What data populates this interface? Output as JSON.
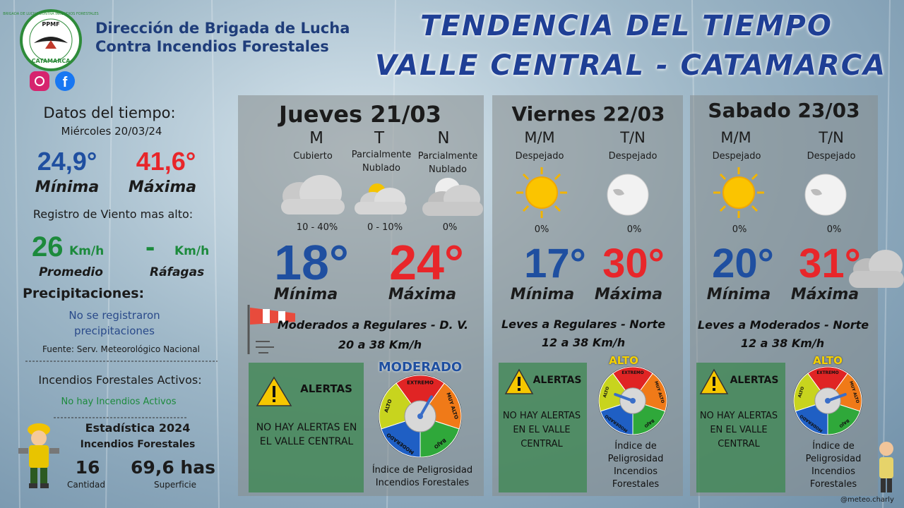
{
  "header": {
    "logo_top": "BRIGADA DE LUCHA CONTRA INCENDIOS FORESTALES",
    "logo_mid": "PPMF",
    "logo_bottom": "CATAMARCA",
    "org_line1": "Dirección de Brigada de Lucha",
    "org_line2": "Contra Incendios Forestales",
    "title_line1": "TENDENCIA DEL TIEMPO",
    "title_line2": "VALLE CENTRAL - CATAMARCA"
  },
  "left": {
    "datos_title": "Datos del tiempo:",
    "date": "Miércoles 20/03/24",
    "min_value": "24,9°",
    "min_label": "Mínima",
    "max_value": "41,6°",
    "max_label": "Máxima",
    "wind_title": "Registro de Viento mas alto:",
    "wind_avg": "26",
    "wind_avg_unit": "Km/h",
    "wind_avg_label": "Promedio",
    "wind_gust": "-",
    "wind_gust_unit": "Km/h",
    "wind_gust_label": "Ráfagas",
    "precip_title": "Precipitaciones:",
    "precip_text": "No se registraron precipitaciones",
    "source": "Fuente: Serv. Meteorológico Nacional",
    "fires_title": "Incendios Forestales Activos:",
    "fires_text": "No hay Incendios Activos",
    "stats_title": "Estadística 2024",
    "stats_subtitle": "Incendios Forestales",
    "count": "16",
    "count_label": "Cantidad",
    "area": "69,6 has",
    "area_label": "Superficie"
  },
  "gauge_labels": {
    "top": "EXTREMO",
    "upper_right": "MUY ALTO",
    "lower_right": "BAJO",
    "lower_left": "MODERADO",
    "left": "ALTO"
  },
  "days": [
    {
      "title": "Jueves 21/03",
      "periods": [
        {
          "label": "M",
          "desc": "Cubierto",
          "prob": "10 - 40%"
        },
        {
          "label": "T",
          "desc": "Parcialmente Nublado",
          "prob": "0 - 10%"
        },
        {
          "label": "N",
          "desc": "Parcialmente Nublado",
          "prob": "0%"
        }
      ],
      "min": "18°",
      "min_label": "Mínima",
      "max": "24°",
      "max_label": "Máxima",
      "wind_text": "Moderados a Regulares  - D. V.",
      "wind_speed": "20 a 38 Km/h",
      "alerts_title": "ALERTAS",
      "alerts_text": "NO HAY ALERTAS EN EL VALLE CENTRAL",
      "danger_level": "MODERADO",
      "danger_caption": "Índice de Peligrosidad Incendios Forestales"
    },
    {
      "title": "Viernes 22/03",
      "periods": [
        {
          "label": "M/M",
          "desc": "Despejado",
          "prob": "0%"
        },
        {
          "label": "T/N",
          "desc": "Despejado",
          "prob": "0%"
        }
      ],
      "min": "17°",
      "min_label": "Mínima",
      "max": "30°",
      "max_label": "Máxima",
      "wind_text": "Leves a Regulares - Norte",
      "wind_speed": "12 a 38 Km/h",
      "alerts_title": "ALERTAS",
      "alerts_text": "NO HAY ALERTAS EN EL VALLE CENTRAL",
      "danger_level": "ALTO",
      "danger_caption": "Índice de Peligrosidad Incendios Forestales"
    },
    {
      "title": "Sabado 23/03",
      "periods": [
        {
          "label": "M/M",
          "desc": "Despejado",
          "prob": "0%"
        },
        {
          "label": "T/N",
          "desc": "Despejado",
          "prob": "0%"
        }
      ],
      "min": "20°",
      "min_label": "Mínima",
      "max": "31°",
      "max_label": "Máxima",
      "wind_text": "Leves a Moderados - Norte",
      "wind_speed": "12 a 38 Km/h",
      "alerts_title": "ALERTAS",
      "alerts_text": "NO HAY ALERTAS EN EL VALLE CENTRAL",
      "danger_level": "ALTO",
      "danger_caption": "Índice de Peligrosidad Incendios Forestales"
    }
  ],
  "footer": {
    "credit": "@meteo.charly"
  }
}
